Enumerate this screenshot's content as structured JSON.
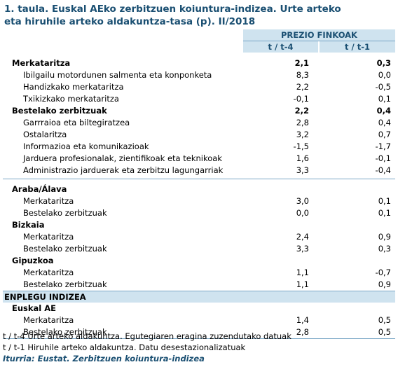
{
  "title_line1": "1. taula. Euskal AEko zerbitzuen koiuntura-indizea. Urte arteko",
  "title_line2": "eta hiruhile arteko aldakuntza-tasa (p). II/2018",
  "header": {
    "group": "PREZIO FINKOAK",
    "col1": "t / t-4",
    "col2": "t / t-1"
  },
  "block1": [
    {
      "label": "Merkataritza",
      "v1": "2,1",
      "v2": "0,3"
    },
    {
      "label": "Ibilgailu motordunen salmenta eta konponketa",
      "v1": "8,3",
      "v2": "0,0"
    },
    {
      "label": "Handizkako merkataritza",
      "v1": "2,2",
      "v2": "-0,5"
    },
    {
      "label": "Txikizkako merkataritza",
      "v1": "-0,1",
      "v2": "0,1"
    },
    {
      "label": "Bestelako zerbitzuak",
      "v1": "2,2",
      "v2": "0,4"
    },
    {
      "label": "Garrraioa eta biltegiratzea",
      "v1": "2,8",
      "v2": "0,4"
    },
    {
      "label": "Ostalaritza",
      "v1": "3,2",
      "v2": "0,7"
    },
    {
      "label": "Informazioa eta komunikazioak",
      "v1": "-1,5",
      "v2": "-1,7"
    },
    {
      "label": "Jarduera profesionalak, zientifikoak eta teknikoak",
      "v1": "1,6",
      "v2": "-0,1"
    },
    {
      "label": "Administrazio jarduerak eta zerbitzu lagungarriak",
      "v1": "3,3",
      "v2": "-0,4"
    }
  ],
  "territories": [
    {
      "name": "Araba/Álava",
      "rows": [
        {
          "label": "Merkataritza",
          "v1": "3,0",
          "v2": "0,1"
        },
        {
          "label": "Bestelako zerbitzuak",
          "v1": "0,0",
          "v2": "0,1"
        }
      ]
    },
    {
      "name": "Bizkaia",
      "rows": [
        {
          "label": "Merkataritza",
          "v1": "2,4",
          "v2": "0,9"
        },
        {
          "label": "Bestelako zerbitzuak",
          "v1": "3,3",
          "v2": "0,3"
        }
      ]
    },
    {
      "name": "Gipuzkoa",
      "rows": [
        {
          "label": "Merkataritza",
          "v1": "1,1",
          "v2": "-0,7"
        },
        {
          "label": "Bestelako zerbitzuak",
          "v1": "1,1",
          "v2": "0,9"
        }
      ]
    }
  ],
  "employment": {
    "band": "ENPLEGU INDIZEA",
    "name": "Euskal AE",
    "rows": [
      {
        "label": "Merkataritza",
        "v1": "1,4",
        "v2": "0,5"
      },
      {
        "label": "Bestelako zerbitzuak",
        "v1": "2,8",
        "v2": "0,5"
      }
    ]
  },
  "notes": {
    "note1": "t / t-4 Urte arteko aldakuntza. Egutegiaren eragina zuzendutako datuak",
    "note2": "t / t-1 Hiruhile arteko aldakuntza. Datu desestazionalizatuak",
    "source": "Iturria: Eustat. Zerbitzuen koiuntura-indizea"
  }
}
